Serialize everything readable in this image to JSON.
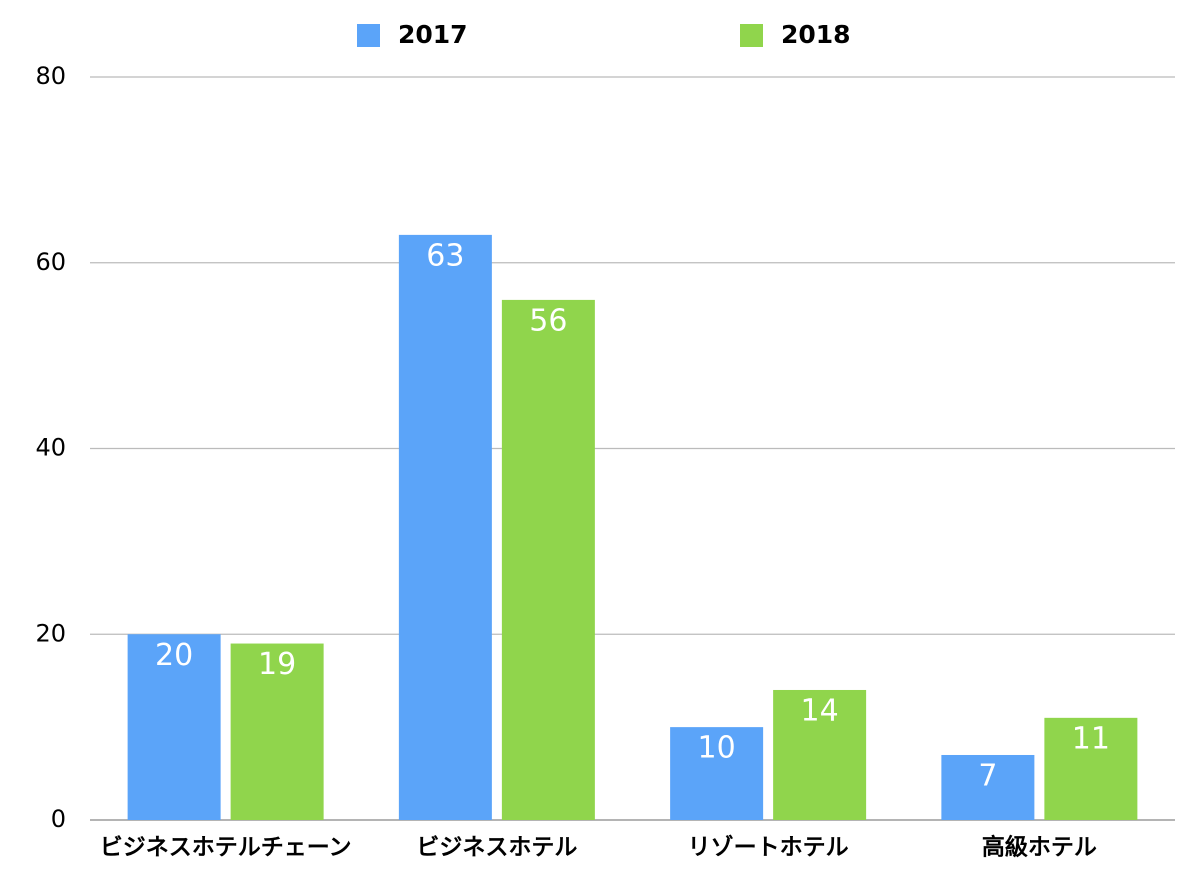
{
  "chart_data": {
    "type": "bar",
    "categories": [
      "ビジネスホテルチェーン",
      "ビジネスホテル",
      "リゾートホテル",
      "高級ホテル"
    ],
    "series": [
      {
        "name": "2017",
        "color": "#5ba4f9",
        "values": [
          20,
          63,
          10,
          7
        ]
      },
      {
        "name": "2018",
        "color": "#90d54c",
        "values": [
          19,
          56,
          14,
          11
        ]
      }
    ],
    "ylim": [
      0,
      80
    ],
    "yticks": [
      0,
      20,
      40,
      60,
      80
    ],
    "grid": true,
    "legend": "top"
  }
}
